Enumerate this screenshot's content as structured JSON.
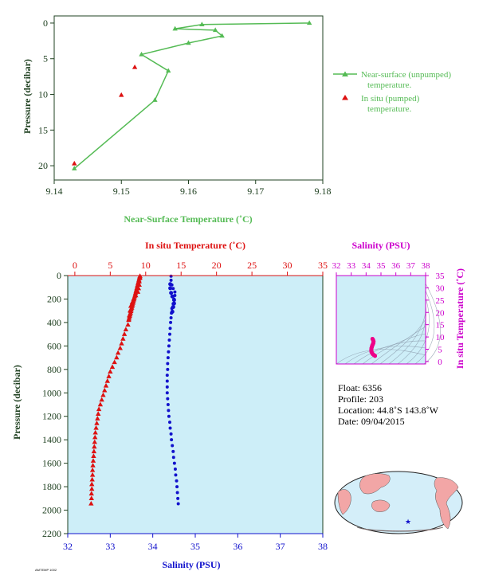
{
  "top_chart": {
    "xlabel": "Near-Surface Temperature (˚C)",
    "ylabel": "Pressure (decibar)",
    "x_ticks": [
      "9.14",
      "9.15",
      "9.16",
      "9.17",
      "9.18"
    ],
    "y_ticks": [
      "0",
      "5",
      "10",
      "15",
      "20"
    ],
    "legend": {
      "unpumped_line1": "Near-surface (unpumped)",
      "unpumped_line2": "temperature.",
      "pumped_line1": "In situ (pumped)",
      "pumped_line2": "temperature."
    },
    "colors": {
      "unpumped": "#55bb55",
      "pumped": "#dd1111",
      "axis": "#1f4020"
    }
  },
  "main_chart": {
    "top_xlabel": "In situ Temperature (˚C)",
    "bottom_xlabel": "Salinity (PSU)",
    "ylabel": "Pressure (decibar)",
    "temp_ticks": [
      "0",
      "5",
      "10",
      "15",
      "20",
      "25",
      "30",
      "35"
    ],
    "sal_ticks": [
      "32",
      "33",
      "34",
      "35",
      "36",
      "37",
      "38"
    ],
    "p_ticks": [
      "0",
      "200",
      "400",
      "600",
      "800",
      "1000",
      "1200",
      "1400",
      "1600",
      "1800",
      "2000",
      "2200"
    ],
    "colors": {
      "temp": "#dd1111",
      "sal": "#1111cc",
      "bg": "#cdeef8"
    }
  },
  "ts_chart": {
    "title": "Salinity (PSU)",
    "ylabel": "In situ Temperature (˚C)",
    "sal_ticks": [
      "32",
      "33",
      "34",
      "35",
      "36",
      "37",
      "38"
    ],
    "temp_ticks": [
      "0",
      "5",
      "10",
      "15",
      "20",
      "25",
      "30",
      "35"
    ],
    "color": "#cc00cc"
  },
  "float_info": {
    "float": "Float:  6356",
    "profile": "Profile:  203",
    "location": "Location:  44.8˚S  143.8˚W",
    "date": "Date:  09/04/2015"
  },
  "footer": "AMTEMP 1002",
  "chart_data": [
    {
      "type": "line",
      "series": [
        {
          "name": "Near-surface (unpumped) temperature.",
          "points": [
            [
              9.178,
              0.0
            ],
            [
              9.162,
              0.2
            ],
            [
              9.158,
              0.8
            ],
            [
              9.164,
              1.0
            ],
            [
              9.165,
              1.8
            ],
            [
              9.16,
              2.8
            ],
            [
              9.153,
              4.4
            ],
            [
              9.157,
              6.7
            ],
            [
              9.155,
              10.8
            ],
            [
              9.143,
              20.4
            ]
          ]
        },
        {
          "name": "In situ (pumped) temperature.",
          "points": [
            [
              9.152,
              6.2
            ],
            [
              9.15,
              10.1
            ],
            [
              9.143,
              19.7
            ]
          ]
        }
      ],
      "xlim": [
        9.14,
        9.18
      ],
      "ylim": [
        22,
        -1
      ],
      "xlabel": "Near-Surface Temperature (˚C)",
      "ylabel": "Pressure (decibar)"
    },
    {
      "type": "scatter",
      "series": [
        {
          "name": "In situ Temperature (˚C)",
          "points": [
            [
              9.2,
              5
            ],
            [
              9.2,
              20
            ],
            [
              9.1,
              50
            ],
            [
              9.1,
              80
            ],
            [
              9.0,
              110
            ],
            [
              8.9,
              140
            ],
            [
              8.6,
              170
            ],
            [
              8.3,
              200
            ],
            [
              8.1,
              230
            ],
            [
              7.9,
              260
            ],
            [
              7.8,
              300
            ],
            [
              7.7,
              340
            ],
            [
              7.6,
              380
            ],
            [
              7.5,
              420
            ],
            [
              7.2,
              460
            ],
            [
              7.0,
              500
            ],
            [
              6.8,
              540
            ],
            [
              6.6,
              580
            ],
            [
              6.4,
              620
            ],
            [
              6.1,
              660
            ],
            [
              5.9,
              700
            ],
            [
              5.6,
              740
            ],
            [
              5.3,
              780
            ],
            [
              5.0,
              820
            ],
            [
              4.8,
              860
            ],
            [
              4.6,
              900
            ],
            [
              4.4,
              940
            ],
            [
              4.2,
              980
            ],
            [
              4.0,
              1020
            ],
            [
              3.8,
              1060
            ],
            [
              3.6,
              1100
            ],
            [
              3.4,
              1140
            ],
            [
              3.3,
              1180
            ],
            [
              3.2,
              1220
            ],
            [
              3.1,
              1260
            ],
            [
              3.0,
              1300
            ],
            [
              2.9,
              1340
            ],
            [
              2.85,
              1380
            ],
            [
              2.8,
              1420
            ],
            [
              2.75,
              1460
            ],
            [
              2.7,
              1500
            ],
            [
              2.65,
              1540
            ],
            [
              2.6,
              1580
            ],
            [
              2.55,
              1620
            ],
            [
              2.5,
              1660
            ],
            [
              2.5,
              1700
            ],
            [
              2.45,
              1740
            ],
            [
              2.4,
              1780
            ],
            [
              2.4,
              1820
            ],
            [
              2.35,
              1860
            ],
            [
              2.35,
              1900
            ],
            [
              2.3,
              1945
            ]
          ]
        },
        {
          "name": "Salinity (PSU)",
          "points": [
            [
              34.43,
              5
            ],
            [
              34.43,
              40
            ],
            [
              34.45,
              80
            ],
            [
              34.48,
              110
            ],
            [
              34.52,
              140
            ],
            [
              34.52,
              170
            ],
            [
              34.5,
              200
            ],
            [
              34.48,
              240
            ],
            [
              34.45,
              280
            ],
            [
              34.44,
              320
            ],
            [
              34.43,
              360
            ],
            [
              34.42,
              400
            ],
            [
              34.41,
              450
            ],
            [
              34.4,
              500
            ],
            [
              34.39,
              550
            ],
            [
              34.38,
              600
            ],
            [
              34.37,
              650
            ],
            [
              34.36,
              700
            ],
            [
              34.35,
              750
            ],
            [
              34.35,
              800
            ],
            [
              34.34,
              850
            ],
            [
              34.34,
              900
            ],
            [
              34.34,
              950
            ],
            [
              34.34,
              1000
            ],
            [
              34.35,
              1050
            ],
            [
              34.36,
              1100
            ],
            [
              34.37,
              1150
            ],
            [
              34.38,
              1200
            ],
            [
              34.4,
              1250
            ],
            [
              34.41,
              1300
            ],
            [
              34.43,
              1350
            ],
            [
              34.44,
              1400
            ],
            [
              34.46,
              1450
            ],
            [
              34.48,
              1500
            ],
            [
              34.49,
              1550
            ],
            [
              34.51,
              1600
            ],
            [
              34.53,
              1650
            ],
            [
              34.54,
              1700
            ],
            [
              34.56,
              1750
            ],
            [
              34.57,
              1800
            ],
            [
              34.58,
              1850
            ],
            [
              34.59,
              1900
            ],
            [
              34.6,
              1945
            ]
          ]
        }
      ],
      "temp_xlim": [
        -1,
        35
      ],
      "sal_xlim": [
        32,
        38
      ],
      "ylim": [
        2200,
        0
      ],
      "xlabel": "Salinity (PSU)",
      "x2label": "In situ Temperature (˚C)",
      "ylabel": "Pressure (decibar)"
    },
    {
      "type": "scatter",
      "series": [
        {
          "name": "T-S",
          "points": [
            [
              34.43,
              9.2
            ],
            [
              34.47,
              8.8
            ],
            [
              34.5,
              8.2
            ],
            [
              34.49,
              7.6
            ],
            [
              34.46,
              7.1
            ],
            [
              34.42,
              6.6
            ],
            [
              34.39,
              6.0
            ],
            [
              34.36,
              5.4
            ],
            [
              34.35,
              4.7
            ],
            [
              34.36,
              4.0
            ],
            [
              34.4,
              3.5
            ],
            [
              34.45,
              3.0
            ],
            [
              34.51,
              2.7
            ],
            [
              34.56,
              2.5
            ],
            [
              34.6,
              2.3
            ]
          ]
        }
      ],
      "xlim": [
        32,
        38
      ],
      "ylim": [
        -1,
        35
      ],
      "xlabel": "Salinity (PSU)",
      "ylabel": "In situ Temperature (˚C)"
    }
  ]
}
